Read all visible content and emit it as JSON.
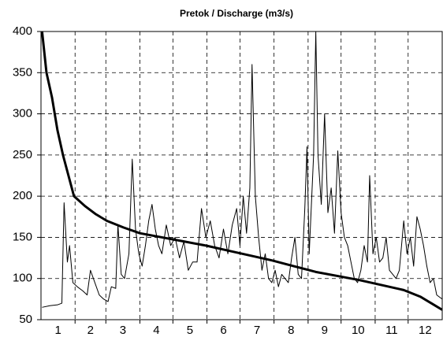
{
  "chart_data": {
    "type": "line",
    "title": "Pretok / Discharge (m3/s)",
    "xlim": [
      0,
      365
    ],
    "ylim": [
      50,
      400
    ],
    "yticks": [
      50,
      100,
      150,
      200,
      250,
      300,
      350,
      400
    ],
    "xticks": [
      {
        "value": 15.5,
        "label": "1"
      },
      {
        "value": 45,
        "label": "2"
      },
      {
        "value": 74.5,
        "label": "3"
      },
      {
        "value": 105,
        "label": "4"
      },
      {
        "value": 135.5,
        "label": "5"
      },
      {
        "value": 166,
        "label": "6"
      },
      {
        "value": 196.5,
        "label": "7"
      },
      {
        "value": 227.5,
        "label": "8"
      },
      {
        "value": 258,
        "label": "9"
      },
      {
        "value": 288.5,
        "label": "10"
      },
      {
        "value": 319,
        "label": "11"
      },
      {
        "value": 349.5,
        "label": "12"
      }
    ],
    "xgrid": [
      31,
      59,
      90,
      120,
      151,
      181,
      212,
      243,
      273,
      304,
      334
    ],
    "grid": true,
    "series": [
      {
        "color": "#000000",
        "width": 1,
        "x": [
          1,
          8,
          15,
          19,
          21,
          24,
          26,
          29,
          33,
          38,
          42,
          45,
          49,
          53,
          57,
          61,
          64,
          68,
          70,
          73,
          76,
          80,
          83,
          86,
          89,
          92,
          95,
          98,
          101,
          104,
          107,
          110,
          114,
          118,
          122,
          126,
          130,
          134,
          138,
          142,
          146,
          150,
          154,
          158,
          162,
          166,
          170,
          174,
          178,
          181,
          184,
          187,
          190,
          192,
          195,
          198,
          201,
          204,
          207,
          210,
          213,
          216,
          219,
          222,
          225,
          228,
          231,
          234,
          237,
          240,
          242,
          244,
          246,
          248,
          250,
          252,
          255,
          258,
          261,
          264,
          267,
          270,
          273,
          276,
          279,
          282,
          285,
          288,
          291,
          294,
          297,
          299,
          302,
          305,
          308,
          311,
          314,
          317,
          320,
          323,
          326,
          330,
          333,
          336,
          339,
          342,
          345,
          348,
          351,
          354,
          357,
          360,
          365
        ],
        "values": [
          65,
          67,
          68,
          70,
          192,
          120,
          140,
          95,
          90,
          85,
          80,
          110,
          95,
          80,
          75,
          72,
          90,
          88,
          165,
          105,
          100,
          130,
          245,
          160,
          130,
          115,
          140,
          170,
          190,
          160,
          140,
          130,
          165,
          140,
          150,
          125,
          145,
          110,
          120,
          120,
          185,
          150,
          170,
          140,
          125,
          160,
          130,
          165,
          185,
          140,
          200,
          155,
          210,
          360,
          200,
          150,
          110,
          130,
          100,
          95,
          110,
          90,
          105,
          100,
          95,
          125,
          150,
          105,
          100,
          185,
          260,
          130,
          190,
          250,
          400,
          250,
          190,
          300,
          180,
          210,
          155,
          255,
          180,
          150,
          140,
          120,
          100,
          95,
          110,
          140,
          120,
          225,
          130,
          150,
          120,
          125,
          150,
          110,
          105,
          100,
          110,
          170,
          130,
          150,
          115,
          175,
          160,
          140,
          115,
          95,
          100,
          80,
          75
        ]
      },
      {
        "color": "#000000",
        "width": 3,
        "x": [
          1,
          5,
          10,
          15,
          20,
          25,
          30,
          40,
          50,
          60,
          75,
          90,
          110,
          130,
          150,
          170,
          190,
          210,
          230,
          250,
          270,
          290,
          310,
          330,
          345,
          355,
          365
        ],
        "values": [
          400,
          350,
          320,
          280,
          250,
          225,
          200,
          188,
          178,
          170,
          162,
          155,
          150,
          145,
          140,
          134,
          128,
          122,
          115,
          108,
          103,
          98,
          92,
          86,
          78,
          70,
          62
        ]
      }
    ]
  }
}
